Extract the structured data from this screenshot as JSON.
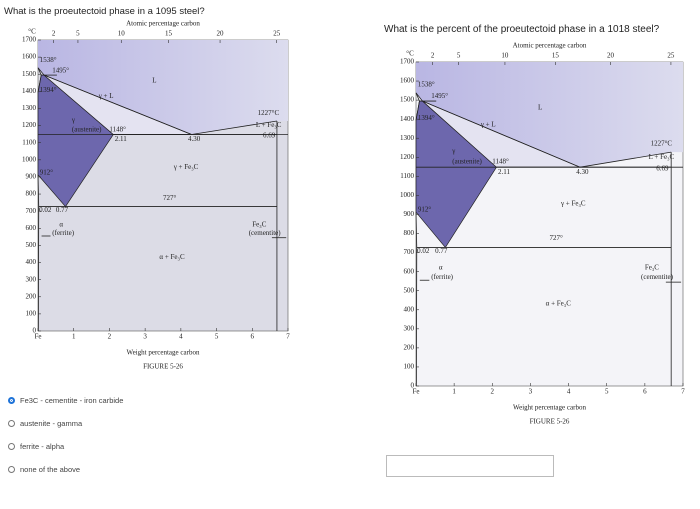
{
  "questions": [
    {
      "question": "What is the proeutectoid phase in a 1095 steel?",
      "options": [
        "Fe3C - cementite - iron carbide",
        "austenite - gamma",
        "ferrite - alpha",
        "none of the above"
      ],
      "selected": 0
    },
    {
      "question": "What is the percent of the proeutectoid phase in a 1018 steel?"
    }
  ],
  "diagram": {
    "unit": "°C",
    "top_title": "Atomic percentage carbon",
    "top_ticks": [
      2,
      5,
      10,
      15,
      20,
      25
    ],
    "yticks": [
      0,
      100,
      200,
      300,
      400,
      500,
      600,
      700,
      800,
      900,
      1000,
      1100,
      1200,
      1300,
      1400,
      1500,
      1600,
      1700
    ],
    "xticks": [
      {
        "value": 0,
        "label": "Fe"
      },
      1,
      2,
      3,
      4,
      5,
      6,
      7
    ],
    "x_title": "Weight percentage carbon",
    "caption": "FIGURE 5-26",
    "labels": [
      "1538°",
      "1495°",
      "1394°",
      "912°",
      "γ",
      "(austenite)",
      "γ + L",
      "L",
      "1148°",
      "2.11",
      "4.30",
      "1227°C",
      "L + Fe₃C",
      "6.69",
      "γ + Fe₃C",
      "727°",
      "0.02",
      "0.77",
      "α",
      "(ferrite)",
      "α + Fe₃C",
      "Fe₃C",
      "(cementite)"
    ]
  }
}
